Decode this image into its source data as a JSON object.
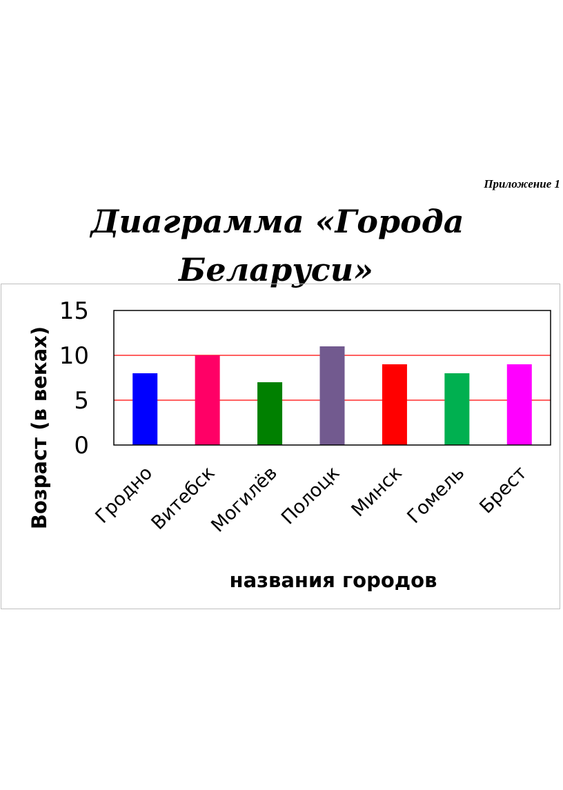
{
  "appendix_label": "Приложение 1",
  "title_lines": [
    "Диаграмма «Города",
    "Беларуси»"
  ],
  "chart_data": {
    "type": "bar",
    "categories": [
      "Гродно",
      "Витебск",
      "Могилёв",
      "Полоцк",
      "Минск",
      "Гомель",
      "Брест"
    ],
    "values": [
      8,
      10,
      7,
      11,
      9,
      8,
      9
    ],
    "colors": [
      "#0000ff",
      "#ff0066",
      "#008000",
      "#725a8f",
      "#ff0000",
      "#00b050",
      "#ff00ff"
    ],
    "xlabel": "названия городов",
    "ylabel": "Возраст (в веках)",
    "ylim": [
      0,
      15
    ],
    "yticks": [
      0,
      5,
      10,
      15
    ],
    "gridline_color": "#ff0000",
    "grid": true
  }
}
